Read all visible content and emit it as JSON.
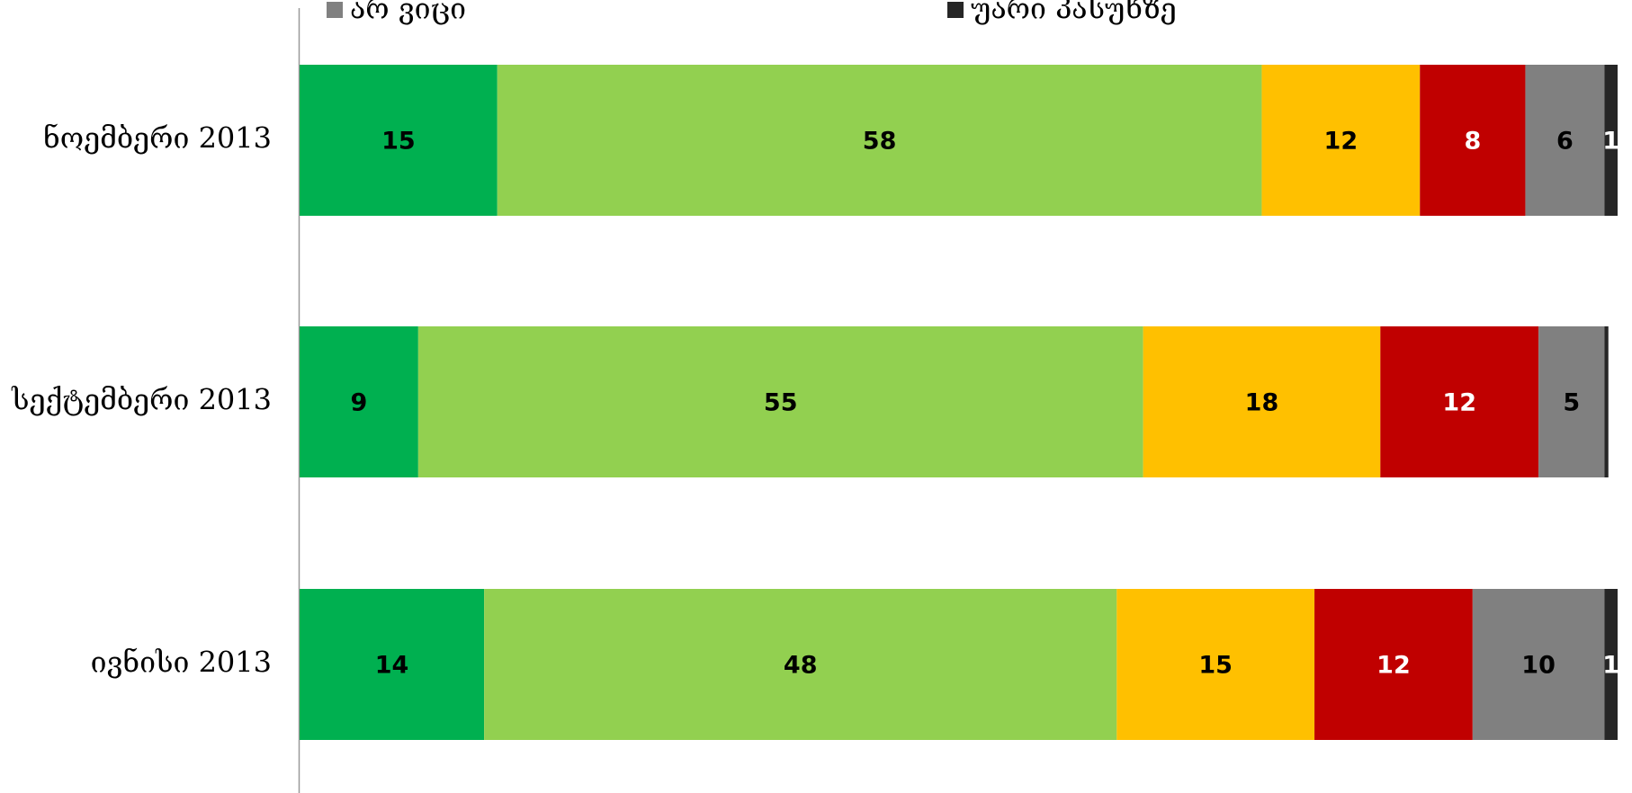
{
  "chart_data": {
    "type": "stacked_barh",
    "categories": [
      "ნოემბერი  2013",
      "სექტემბერი 2013",
      "ივნისი 2013"
    ],
    "series": [
      {
        "color": "#00b050",
        "values": [
          15,
          9,
          14
        ]
      },
      {
        "color": "#92d050",
        "values": [
          58,
          55,
          48
        ]
      },
      {
        "color": "#ffc000",
        "values": [
          12,
          18,
          15
        ]
      },
      {
        "color": "#c00000",
        "values": [
          8,
          12,
          12
        ]
      },
      {
        "name": "არ ვიცი",
        "color": "#808080",
        "values": [
          6,
          5,
          10
        ]
      },
      {
        "name": "უარი პასუხზე",
        "color": "#262626",
        "values": [
          1,
          0.3,
          1
        ],
        "value_labels": [
          "1",
          null,
          "1"
        ]
      }
    ],
    "xlim": [
      0,
      100
    ]
  }
}
